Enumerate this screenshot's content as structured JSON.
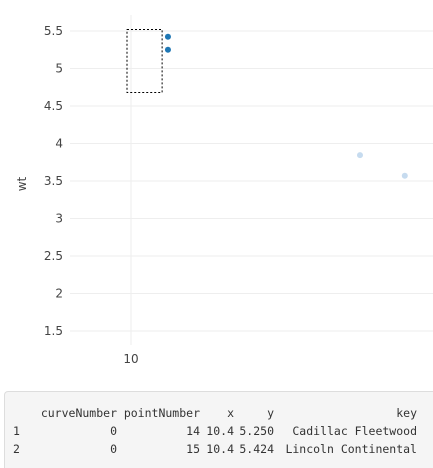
{
  "plot": {
    "y_axis_title": "wt",
    "x_tick_labels": [
      {
        "value": 10,
        "label": "10"
      }
    ],
    "y_tick_labels": [
      {
        "value": 1.5,
        "label": "1.5"
      },
      {
        "value": 2,
        "label": "2"
      },
      {
        "value": 2.5,
        "label": "2.5"
      },
      {
        "value": 3,
        "label": "3"
      },
      {
        "value": 3.5,
        "label": "3.5"
      },
      {
        "value": 4,
        "label": "4"
      },
      {
        "value": 4.5,
        "label": "4.5"
      },
      {
        "value": 5,
        "label": "5"
      },
      {
        "value": 5.5,
        "label": "5.5"
      }
    ],
    "selected_color": "#1f77b4",
    "unselected_color": "#c6dbef",
    "selection_box": {
      "x_range": [
        10.0,
        11.25
      ],
      "y_range": [
        4.68,
        5.52
      ]
    }
  },
  "chart_data": {
    "type": "scatter",
    "xlabel": "",
    "ylabel": "wt",
    "xlim": [
      9.0,
      21.0
    ],
    "ylim": [
      1.1,
      5.65
    ],
    "grid": true,
    "series": [
      {
        "selected": true,
        "points": [
          {
            "x": 10.4,
            "y": 5.25
          },
          {
            "x": 10.4,
            "y": 5.424
          }
        ]
      },
      {
        "selected": false,
        "points": [
          {
            "x": 19.2,
            "y": 3.845
          },
          {
            "x": 21.0,
            "y": 3.57
          }
        ]
      }
    ]
  },
  "output": {
    "headers": [
      "",
      "curveNumber",
      "pointNumber",
      "x",
      "y",
      "key"
    ],
    "rows": [
      [
        "1",
        "0",
        "14",
        "10.4",
        "5.250",
        "Cadillac Fleetwood"
      ],
      [
        "2",
        "0",
        "15",
        "10.4",
        "5.424",
        "Lincoln Continental"
      ]
    ]
  }
}
